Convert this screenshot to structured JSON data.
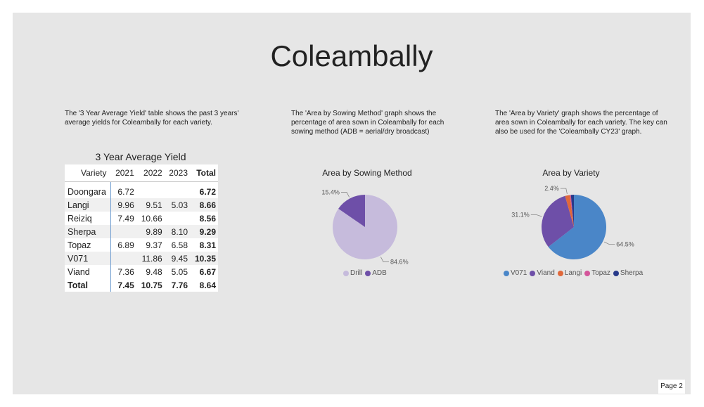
{
  "title": "Coleambally",
  "descriptions": {
    "table": "The '3 Year Average Yield' table shows the past 3 years' average yields for Coleambally for each variety.",
    "sowing": "The 'Area by Sowing Method' graph shows the percentage of area sown in Coleambally for each sowing method (ADB = aerial/dry broadcast)",
    "variety": "The 'Area by Variety' graph shows the percentage of area sown in Coleambally for each variety. The key can also be used for the 'Coleambally CY23' graph."
  },
  "page_label": "Page 2",
  "chart_data": [
    {
      "type": "table",
      "title": "3 Year Average Yield",
      "columns": [
        "Variety",
        "2021",
        "2022",
        "2023",
        "Total"
      ],
      "rows": [
        [
          "Doongara",
          "6.72",
          "",
          "",
          "6.72"
        ],
        [
          "Langi",
          "9.96",
          "9.51",
          "5.03",
          "8.66"
        ],
        [
          "Reiziq",
          "7.49",
          "10.66",
          "",
          "8.56"
        ],
        [
          "Sherpa",
          "",
          "9.89",
          "8.10",
          "9.29"
        ],
        [
          "Topaz",
          "6.89",
          "9.37",
          "6.58",
          "8.31"
        ],
        [
          "V071",
          "",
          "11.86",
          "9.45",
          "10.35"
        ],
        [
          "Viand",
          "7.36",
          "9.48",
          "5.05",
          "6.67"
        ]
      ],
      "total_row": [
        "Total",
        "7.45",
        "10.75",
        "7.76",
        "8.64"
      ]
    },
    {
      "type": "pie",
      "title": "Area by Sowing Method",
      "labels": [
        "Drill",
        "ADB"
      ],
      "values": [
        84.6,
        15.4
      ],
      "data_labels": [
        "84.6%",
        "15.4%"
      ],
      "colors": [
        "#c6bbdc",
        "#6e4fa8"
      ],
      "legend": "bottom"
    },
    {
      "type": "pie",
      "title": "Area by Variety",
      "labels": [
        "V071",
        "Viand",
        "Langi",
        "Topaz",
        "Sherpa"
      ],
      "values": [
        64.5,
        31.1,
        2.4,
        0.5,
        1.5
      ],
      "data_labels": [
        "64.5%",
        "31.1%",
        "2.4%",
        "",
        ""
      ],
      "colors": [
        "#4a86c8",
        "#6e4fa8",
        "#e0683a",
        "#d4559a",
        "#283a8a"
      ],
      "legend": "bottom"
    }
  ]
}
